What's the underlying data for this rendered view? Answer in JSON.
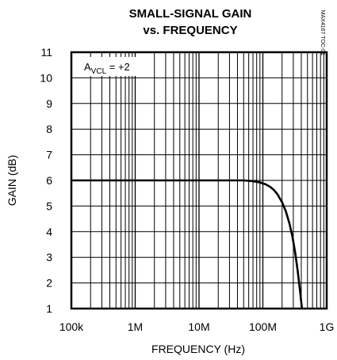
{
  "chart_data": {
    "type": "line",
    "title": "SMALL-SIGNAL GAIN",
    "subtitle": "vs. FREQUENCY",
    "xlabel": "FREQUENCY (Hz)",
    "ylabel": "GAIN (dB)",
    "xscale": "log",
    "xlim": [
      100000,
      1000000000
    ],
    "ylim": [
      1,
      11
    ],
    "grid": true,
    "x_ticks": [
      100000,
      1000000,
      10000000,
      100000000,
      1000000000
    ],
    "x_tick_labels": [
      "100k",
      "1M",
      "10M",
      "100M",
      "1G"
    ],
    "y_ticks": [
      1,
      2,
      3,
      4,
      5,
      6,
      7,
      8,
      9,
      10,
      11
    ],
    "y_tick_labels": [
      "1",
      "2",
      "3",
      "4",
      "5",
      "6",
      "7",
      "8",
      "9",
      "10",
      "11"
    ],
    "annotation": {
      "main": "A",
      "sub": "VCL",
      "rest": " = +2"
    },
    "code": "MAX4167 TOC-01",
    "series": [
      {
        "x": [
          100000,
          1000000,
          10000000,
          50000000,
          70000000,
          90000000,
          110000000,
          130000000,
          150000000,
          170000000,
          200000000,
          230000000,
          260000000,
          290000000,
          320000000,
          350000000,
          380000000,
          410000000
        ],
        "y": [
          6,
          6,
          6,
          6,
          5.97,
          5.92,
          5.85,
          5.75,
          5.62,
          5.45,
          5.15,
          4.78,
          4.33,
          3.82,
          3.2,
          2.5,
          1.75,
          1.0
        ]
      }
    ]
  }
}
